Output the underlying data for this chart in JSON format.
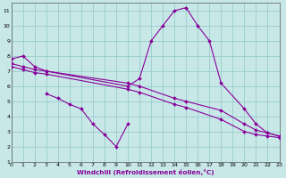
{
  "xlabel": "Windchill (Refroidissement éolien,°C)",
  "bg_color": "#c8e8e8",
  "grid_color": "#99cccc",
  "line_color": "#880099",
  "xlim": [
    0,
    23
  ],
  "ylim": [
    1,
    11.5
  ],
  "xtick_labels": [
    "0",
    "1",
    "2",
    "3",
    "4",
    "5",
    "6",
    "7",
    "8",
    "9",
    "10",
    "11",
    "12",
    "13",
    "14",
    "15",
    "16",
    "17",
    "18",
    "19",
    "20",
    "21",
    "22",
    "23"
  ],
  "ytick_labels": [
    "1",
    "2",
    "3",
    "4",
    "5",
    "6",
    "7",
    "8",
    "9",
    "10",
    "11"
  ],
  "lines": [
    {
      "x": [
        0,
        1,
        2,
        3,
        10,
        11,
        12,
        13,
        14,
        15,
        16,
        17,
        18,
        20,
        21,
        22,
        23
      ],
      "y": [
        7.8,
        8.0,
        7.3,
        7.0,
        6.0,
        6.5,
        9.0,
        10.0,
        11.0,
        11.2,
        10.0,
        9.0,
        6.2,
        4.5,
        3.5,
        2.9,
        2.7
      ]
    },
    {
      "x": [
        0,
        1,
        2,
        3,
        10,
        11,
        14,
        15,
        18,
        20,
        21,
        22,
        23
      ],
      "y": [
        7.5,
        7.3,
        7.1,
        7.0,
        6.2,
        6.0,
        5.2,
        5.0,
        4.4,
        3.5,
        3.1,
        2.9,
        2.7
      ]
    },
    {
      "x": [
        0,
        1,
        2,
        3,
        10,
        11,
        14,
        15,
        18,
        20,
        21,
        22,
        23
      ],
      "y": [
        7.3,
        7.1,
        6.9,
        6.8,
        5.8,
        5.6,
        4.8,
        4.6,
        3.8,
        3.0,
        2.8,
        2.7,
        2.6
      ]
    },
    {
      "x": [
        3,
        4,
        5,
        6,
        7,
        8,
        9,
        10
      ],
      "y": [
        5.5,
        5.2,
        4.8,
        4.5,
        3.5,
        2.8,
        2.0,
        3.5
      ]
    }
  ]
}
